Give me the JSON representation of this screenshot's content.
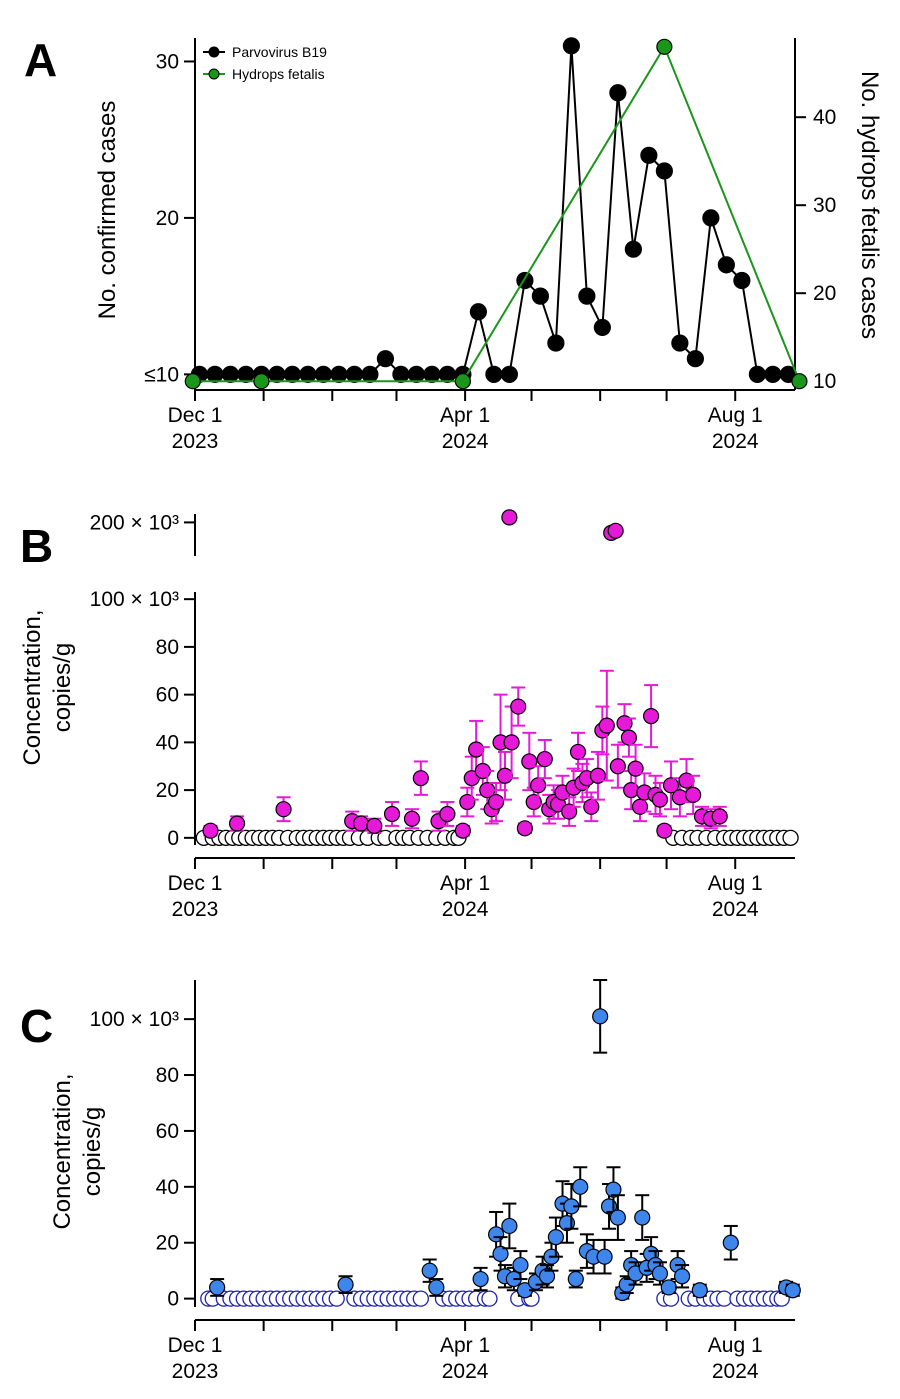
{
  "chart_data": [
    {
      "panel": "A",
      "type": "line",
      "xlabels": [
        {
          "date": "2023-12-01",
          "line1": "Dec 1",
          "line2": "2023"
        },
        {
          "date": "2024-04-01",
          "line1": "Apr 1",
          "line2": "2024"
        },
        {
          "date": "2024-08-01",
          "line1": "Aug 1",
          "line2": "2024"
        }
      ],
      "xlim": [
        "2023-12-01",
        "2024-08-28"
      ],
      "ylabel_left": "No. confirmed cases",
      "ylabel_right": "No. hydrops fetalis cases",
      "ylim_left": [
        9,
        31.5
      ],
      "ylim_right": [
        9,
        49
      ],
      "yticks_left": [
        {
          "v": 10,
          "t": "≤10"
        },
        {
          "v": 20,
          "t": "20"
        },
        {
          "v": 30,
          "t": "30"
        }
      ],
      "yticks_right": [
        10,
        20,
        30,
        40
      ],
      "series": [
        {
          "name": "Parvovirus B19",
          "color": "#000000",
          "axis": "left",
          "dates": [
            "2023-12-03",
            "2023-12-10",
            "2023-12-17",
            "2023-12-24",
            "2023-12-31",
            "2024-01-07",
            "2024-01-14",
            "2024-01-21",
            "2024-01-28",
            "2024-02-04",
            "2024-02-11",
            "2024-02-18",
            "2024-02-25",
            "2024-03-03",
            "2024-03-10",
            "2024-03-17",
            "2024-03-24",
            "2024-03-31",
            "2024-04-07",
            "2024-04-14",
            "2024-04-21",
            "2024-04-28",
            "2024-05-05",
            "2024-05-12",
            "2024-05-19",
            "2024-05-26",
            "2024-06-02",
            "2024-06-09",
            "2024-06-16",
            "2024-06-23",
            "2024-06-30",
            "2024-07-07",
            "2024-07-14",
            "2024-07-21",
            "2024-07-28",
            "2024-08-04",
            "2024-08-11",
            "2024-08-18",
            "2024-08-25"
          ],
          "values": [
            10,
            10,
            10,
            10,
            10,
            10,
            10,
            10,
            10,
            10,
            10,
            10,
            11,
            10,
            10,
            10,
            10,
            10,
            14,
            10,
            10,
            16,
            15,
            12,
            31,
            15,
            13,
            28,
            18,
            24,
            23,
            12,
            11,
            20,
            17,
            16,
            10,
            10,
            10
          ]
        },
        {
          "name": "Hydrops fetalis",
          "color": "#1a961a",
          "axis": "right",
          "dates": [
            "2023-11-30",
            "2023-12-31",
            "2024-03-31",
            "2024-06-30",
            "2024-08-30"
          ],
          "values": [
            10,
            10,
            10,
            48,
            10
          ]
        }
      ]
    },
    {
      "panel": "B",
      "type": "scatter",
      "ylabel": [
        "Concentration,",
        "copies/g"
      ],
      "xlabels": [
        {
          "date": "2023-12-01",
          "line1": "Dec 1",
          "line2": "2023"
        },
        {
          "date": "2024-04-01",
          "line1": "Apr 1",
          "line2": "2024"
        },
        {
          "date": "2024-08-01",
          "line1": "Aug 1",
          "line2": "2024"
        }
      ],
      "xlim": [
        "2023-12-01",
        "2024-08-28"
      ],
      "ylim": [
        -3,
        103
      ],
      "yticks": [
        {
          "v": 0,
          "t": "0"
        },
        {
          "v": 20,
          "t": "20"
        },
        {
          "v": 40,
          "t": "40"
        },
        {
          "v": 60,
          "t": "60"
        },
        {
          "v": 80,
          "t": "80"
        },
        {
          "v": 100,
          "t": "100 × 10³"
        }
      ],
      "break_ylim": [
        120,
        220
      ],
      "break_yticks": [
        {
          "v": 200,
          "t": "200 × 10³"
        }
      ],
      "color": "#e619d9",
      "units": "× 10³ copies/g",
      "detected": [
        {
          "date": "2023-12-08",
          "y": 3,
          "e": 2
        },
        {
          "date": "2023-12-20",
          "y": 6,
          "e": 3
        },
        {
          "date": "2024-01-10",
          "y": 12,
          "e": 5
        },
        {
          "date": "2024-02-10",
          "y": 7,
          "e": 4
        },
        {
          "date": "2024-02-14",
          "y": 6,
          "e": 3
        },
        {
          "date": "2024-02-20",
          "y": 5,
          "e": 3
        },
        {
          "date": "2024-02-28",
          "y": 10,
          "e": 5
        },
        {
          "date": "2024-03-08",
          "y": 8,
          "e": 4
        },
        {
          "date": "2024-03-12",
          "y": 25,
          "e": 7
        },
        {
          "date": "2024-03-20",
          "y": 7,
          "e": 4
        },
        {
          "date": "2024-03-24",
          "y": 10,
          "e": 5
        },
        {
          "date": "2024-03-31",
          "y": 3,
          "e": 2
        },
        {
          "date": "2024-04-02",
          "y": 15,
          "e": 6
        },
        {
          "date": "2024-04-04",
          "y": 25,
          "e": 9
        },
        {
          "date": "2024-04-06",
          "y": 37,
          "e": 12
        },
        {
          "date": "2024-04-09",
          "y": 28,
          "e": 10
        },
        {
          "date": "2024-04-11",
          "y": 20,
          "e": 8
        },
        {
          "date": "2024-04-13",
          "y": 12,
          "e": 6
        },
        {
          "date": "2024-04-15",
          "y": 15,
          "e": 8
        },
        {
          "date": "2024-04-17",
          "y": 40,
          "e": 20
        },
        {
          "date": "2024-04-19",
          "y": 26,
          "e": 10
        },
        {
          "date": "2024-04-22",
          "y": 40,
          "e": 15
        },
        {
          "date": "2024-04-25",
          "y": 55,
          "e": 8
        },
        {
          "date": "2024-04-28",
          "y": 4,
          "e": 2
        },
        {
          "date": "2024-04-30",
          "y": 32,
          "e": 12
        },
        {
          "date": "2024-05-02",
          "y": 15,
          "e": 6
        },
        {
          "date": "2024-05-04",
          "y": 22,
          "e": 8
        },
        {
          "date": "2024-05-07",
          "y": 33,
          "e": 8
        },
        {
          "date": "2024-05-09",
          "y": 12,
          "e": 6
        },
        {
          "date": "2024-05-11",
          "y": 15,
          "e": 7
        },
        {
          "date": "2024-05-13",
          "y": 14,
          "e": 6
        },
        {
          "date": "2024-05-15",
          "y": 19,
          "e": 7
        },
        {
          "date": "2024-05-18",
          "y": 11,
          "e": 6
        },
        {
          "date": "2024-05-20",
          "y": 21,
          "e": 8
        },
        {
          "date": "2024-05-22",
          "y": 36,
          "e": 8
        },
        {
          "date": "2024-05-24",
          "y": 23,
          "e": 8
        },
        {
          "date": "2024-05-26",
          "y": 25,
          "e": 8
        },
        {
          "date": "2024-05-28",
          "y": 13,
          "e": 6
        },
        {
          "date": "2024-05-31",
          "y": 26,
          "e": 10
        },
        {
          "date": "2024-06-02",
          "y": 45,
          "e": 10
        },
        {
          "date": "2024-06-04",
          "y": 47,
          "e": 23
        },
        {
          "date": "2024-06-09",
          "y": 30,
          "e": 9
        },
        {
          "date": "2024-06-12",
          "y": 48,
          "e": 8
        },
        {
          "date": "2024-06-14",
          "y": 42,
          "e": 8
        },
        {
          "date": "2024-06-15",
          "y": 20,
          "e": 8
        },
        {
          "date": "2024-06-17",
          "y": 29,
          "e": 10
        },
        {
          "date": "2024-06-19",
          "y": 13,
          "e": 6
        },
        {
          "date": "2024-06-21",
          "y": 19,
          "e": 8
        },
        {
          "date": "2024-06-24",
          "y": 51,
          "e": 13
        },
        {
          "date": "2024-06-26",
          "y": 18,
          "e": 8
        },
        {
          "date": "2024-06-28",
          "y": 16,
          "e": 7
        },
        {
          "date": "2024-06-30",
          "y": 3,
          "e": 2
        },
        {
          "date": "2024-07-03",
          "y": 22,
          "e": 10
        },
        {
          "date": "2024-07-07",
          "y": 17,
          "e": 8
        },
        {
          "date": "2024-07-10",
          "y": 24,
          "e": 9
        },
        {
          "date": "2024-07-13",
          "y": 18,
          "e": 8
        },
        {
          "date": "2024-07-17",
          "y": 9,
          "e": 4
        },
        {
          "date": "2024-07-21",
          "y": 8,
          "e": 4
        },
        {
          "date": "2024-07-25",
          "y": 9,
          "e": 4
        }
      ],
      "detected_high": [
        {
          "date": "2024-04-21",
          "y": 212,
          "e": 5
        },
        {
          "date": "2024-06-06",
          "y": 175,
          "e": 5
        },
        {
          "date": "2024-06-08",
          "y": 180,
          "e": 5
        }
      ],
      "nondetect_dates": [
        "2023-12-05",
        "2023-12-09",
        "2023-12-12",
        "2023-12-15",
        "2023-12-18",
        "2023-12-21",
        "2023-12-24",
        "2023-12-27",
        "2023-12-30",
        "2024-01-02",
        "2024-01-05",
        "2024-01-08",
        "2024-01-12",
        "2024-01-16",
        "2024-01-19",
        "2024-01-22",
        "2024-01-25",
        "2024-01-28",
        "2024-01-31",
        "2024-02-03",
        "2024-02-06",
        "2024-02-09",
        "2024-02-13",
        "2024-02-17",
        "2024-02-22",
        "2024-02-25",
        "2024-03-01",
        "2024-03-04",
        "2024-03-07",
        "2024-03-11",
        "2024-03-15",
        "2024-03-19",
        "2024-03-23",
        "2024-03-27",
        "2024-03-29",
        "2024-07-04",
        "2024-07-08",
        "2024-07-12",
        "2024-07-15",
        "2024-07-19",
        "2024-07-23",
        "2024-07-27",
        "2024-07-30",
        "2024-08-02",
        "2024-08-05",
        "2024-08-08",
        "2024-08-11",
        "2024-08-14",
        "2024-08-17",
        "2024-08-20",
        "2024-08-23",
        "2024-08-26"
      ]
    },
    {
      "panel": "C",
      "type": "scatter",
      "ylabel": [
        "Concentration,",
        "copies/g"
      ],
      "xlabels": [
        {
          "date": "2023-12-01",
          "line1": "Dec 1",
          "line2": "2023"
        },
        {
          "date": "2024-04-01",
          "line1": "Apr 1",
          "line2": "2024"
        },
        {
          "date": "2024-08-01",
          "line1": "Aug 1",
          "line2": "2024"
        }
      ],
      "xlim": [
        "2023-12-01",
        "2024-08-28"
      ],
      "ylim": [
        -3,
        114
      ],
      "yticks": [
        {
          "v": 0,
          "t": "0"
        },
        {
          "v": 20,
          "t": "20"
        },
        {
          "v": 40,
          "t": "40"
        },
        {
          "v": 60,
          "t": "60"
        },
        {
          "v": 80,
          "t": "80"
        },
        {
          "v": 100,
          "t": "100 × 10³"
        }
      ],
      "color": "#3f86ec",
      "units": "× 10³ copies/g",
      "detected": [
        {
          "date": "2023-12-11",
          "y": 4,
          "e": 3
        },
        {
          "date": "2024-02-07",
          "y": 5,
          "e": 3
        },
        {
          "date": "2024-03-16",
          "y": 10,
          "e": 4
        },
        {
          "date": "2024-03-19",
          "y": 4,
          "e": 3
        },
        {
          "date": "2024-04-08",
          "y": 7,
          "e": 4
        },
        {
          "date": "2024-04-15",
          "y": 23,
          "e": 8
        },
        {
          "date": "2024-04-17",
          "y": 16,
          "e": 6
        },
        {
          "date": "2024-04-19",
          "y": 8,
          "e": 4
        },
        {
          "date": "2024-04-21",
          "y": 26,
          "e": 8
        },
        {
          "date": "2024-04-23",
          "y": 7,
          "e": 4
        },
        {
          "date": "2024-04-26",
          "y": 12,
          "e": 5
        },
        {
          "date": "2024-04-28",
          "y": 3,
          "e": 2
        },
        {
          "date": "2024-05-03",
          "y": 6,
          "e": 3
        },
        {
          "date": "2024-05-06",
          "y": 10,
          "e": 5
        },
        {
          "date": "2024-05-08",
          "y": 8,
          "e": 4
        },
        {
          "date": "2024-05-10",
          "y": 15,
          "e": 5
        },
        {
          "date": "2024-05-12",
          "y": 22,
          "e": 7
        },
        {
          "date": "2024-05-15",
          "y": 34,
          "e": 8
        },
        {
          "date": "2024-05-17",
          "y": 27,
          "e": 7
        },
        {
          "date": "2024-05-19",
          "y": 33,
          "e": 8
        },
        {
          "date": "2024-05-21",
          "y": 7,
          "e": 3
        },
        {
          "date": "2024-05-23",
          "y": 40,
          "e": 7
        },
        {
          "date": "2024-05-26",
          "y": 17,
          "e": 6
        },
        {
          "date": "2024-05-29",
          "y": 15,
          "e": 6
        },
        {
          "date": "2024-06-01",
          "y": 101,
          "e": 13
        },
        {
          "date": "2024-06-03",
          "y": 15,
          "e": 6
        },
        {
          "date": "2024-06-05",
          "y": 33,
          "e": 8
        },
        {
          "date": "2024-06-07",
          "y": 39,
          "e": 8
        },
        {
          "date": "2024-06-09",
          "y": 29,
          "e": 8
        },
        {
          "date": "2024-06-11",
          "y": 2,
          "e": 2
        },
        {
          "date": "2024-06-13",
          "y": 5,
          "e": 3
        },
        {
          "date": "2024-06-15",
          "y": 12,
          "e": 5
        },
        {
          "date": "2024-06-17",
          "y": 9,
          "e": 4
        },
        {
          "date": "2024-06-20",
          "y": 29,
          "e": 8
        },
        {
          "date": "2024-06-22",
          "y": 11,
          "e": 5
        },
        {
          "date": "2024-06-24",
          "y": 16,
          "e": 6
        },
        {
          "date": "2024-06-26",
          "y": 12,
          "e": 5
        },
        {
          "date": "2024-06-28",
          "y": 9,
          "e": 4
        },
        {
          "date": "2024-07-02",
          "y": 4,
          "e": 2
        },
        {
          "date": "2024-07-06",
          "y": 12,
          "e": 5
        },
        {
          "date": "2024-07-08",
          "y": 8,
          "e": 4
        },
        {
          "date": "2024-07-16",
          "y": 3,
          "e": 2
        },
        {
          "date": "2024-07-30",
          "y": 20,
          "e": 6
        },
        {
          "date": "2024-08-24",
          "y": 4,
          "e": 2
        },
        {
          "date": "2024-08-27",
          "y": 3,
          "e": 2
        }
      ],
      "nondetect_dates": [
        "2023-12-07",
        "2023-12-09",
        "2023-12-14",
        "2023-12-17",
        "2023-12-20",
        "2023-12-23",
        "2023-12-26",
        "2023-12-29",
        "2024-01-01",
        "2024-01-04",
        "2024-01-07",
        "2024-01-10",
        "2024-01-13",
        "2024-01-16",
        "2024-01-19",
        "2024-01-22",
        "2024-01-25",
        "2024-01-28",
        "2024-01-31",
        "2024-02-03",
        "2024-02-11",
        "2024-02-14",
        "2024-02-17",
        "2024-02-20",
        "2024-02-23",
        "2024-02-26",
        "2024-02-29",
        "2024-03-03",
        "2024-03-06",
        "2024-03-09",
        "2024-03-12",
        "2024-03-22",
        "2024-03-25",
        "2024-03-28",
        "2024-03-31",
        "2024-04-03",
        "2024-04-06",
        "2024-04-10",
        "2024-04-12",
        "2024-04-25",
        "2024-04-30",
        "2024-05-01",
        "2024-06-30",
        "2024-07-03",
        "2024-07-11",
        "2024-07-14",
        "2024-07-18",
        "2024-07-21",
        "2024-07-24",
        "2024-07-27",
        "2024-08-02",
        "2024-08-05",
        "2024-08-08",
        "2024-08-11",
        "2024-08-14",
        "2024-08-17",
        "2024-08-20",
        "2024-08-22"
      ]
    }
  ],
  "panel_letters": {
    "a": "A",
    "b": "B",
    "c": "C"
  }
}
